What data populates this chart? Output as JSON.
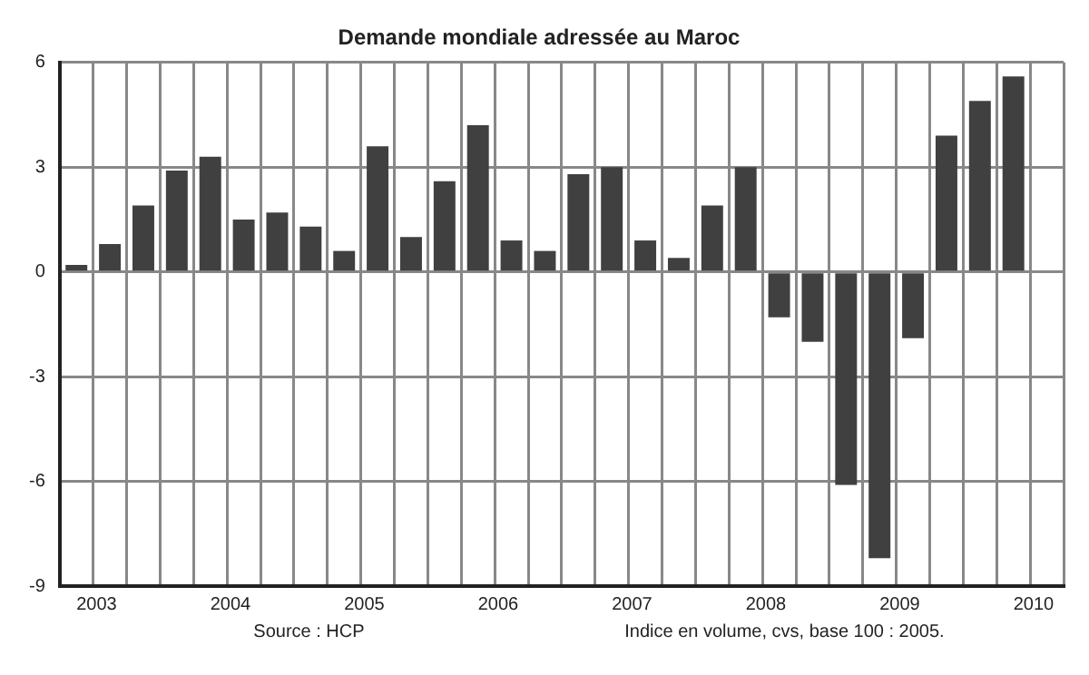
{
  "chart_data": {
    "type": "bar",
    "title": "Demande mondiale adressée au Maroc",
    "categories": [
      "2003",
      null,
      null,
      null,
      "2004",
      null,
      null,
      null,
      "2005",
      null,
      null,
      null,
      "2006",
      null,
      null,
      null,
      "2007",
      null,
      null,
      null,
      "2008",
      null,
      null,
      null,
      "2009",
      null,
      null,
      null,
      "2010",
      null
    ],
    "values": [
      0.2,
      0.8,
      1.9,
      2.9,
      3.3,
      1.5,
      1.7,
      1.3,
      0.6,
      3.6,
      1.0,
      2.6,
      4.2,
      0.9,
      0.6,
      2.8,
      3.0,
      0.9,
      0.4,
      1.9,
      3.0,
      -1.3,
      -2.0,
      -6.1,
      -8.2,
      -1.9,
      3.9,
      4.9,
      5.6,
      null
    ],
    "color": "#404040",
    "ylim": [
      -9,
      6
    ],
    "yticks": [
      {
        "value": -9,
        "label": "-9"
      },
      {
        "value": -6,
        "label": "-6"
      },
      {
        "value": -3,
        "label": "-3"
      },
      0,
      3,
      6
    ],
    "grid": true,
    "legend": false,
    "annotations": [
      "Source : HCP",
      "Indice en volume, cvs, base 100 : 2005."
    ]
  }
}
